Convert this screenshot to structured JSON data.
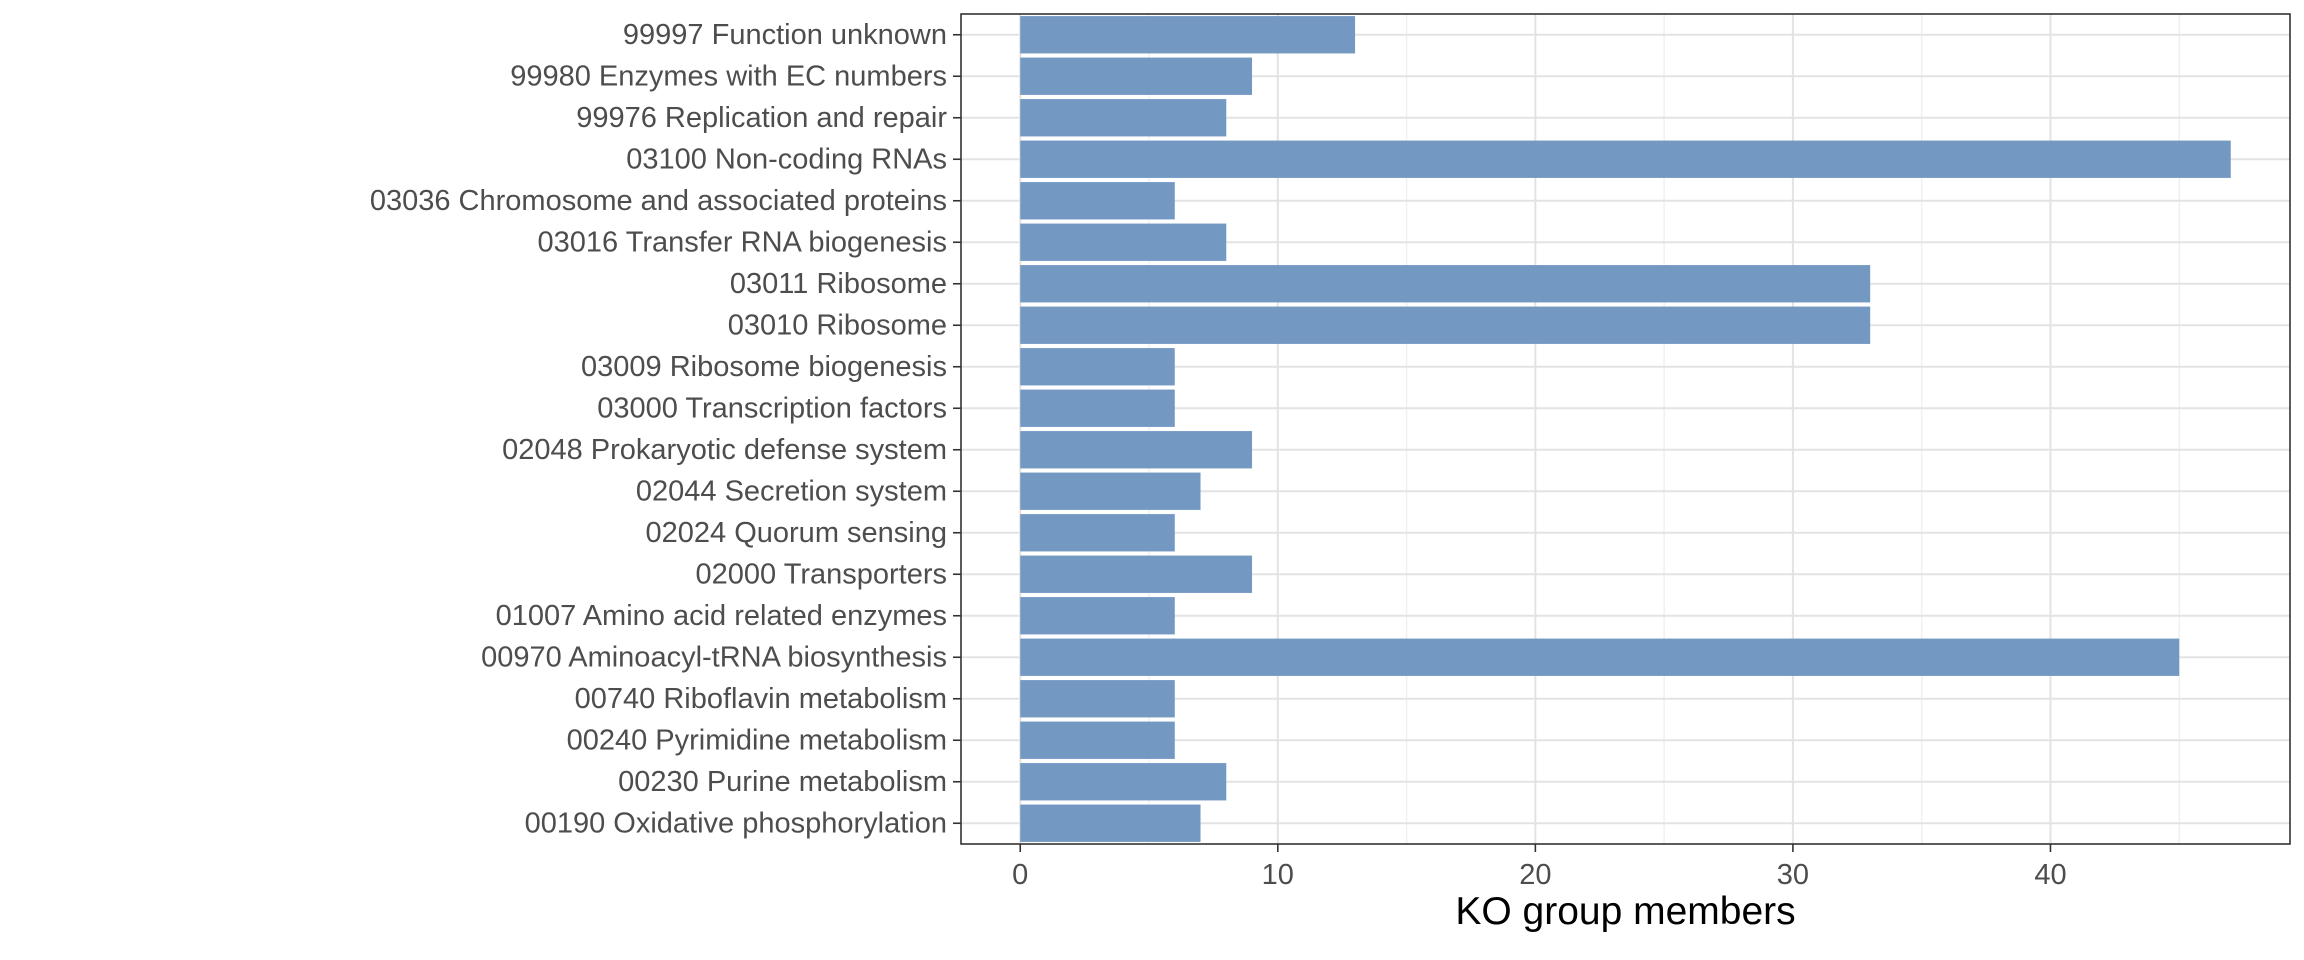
{
  "colors": {
    "bar": "#7399c3",
    "panel_border": "#333333",
    "grid_major": "#e3e3e3",
    "grid_minor": "#f0f0f0",
    "text": "#4d4d4d"
  },
  "chart_data": {
    "type": "bar",
    "orientation": "horizontal",
    "title": "",
    "xlabel": "KO group members",
    "ylabel": "",
    "xlim": [
      -2.3,
      49.3
    ],
    "x_ticks": [
      0,
      10,
      20,
      30,
      40
    ],
    "x_tick_labels": [
      "0",
      "10",
      "20",
      "30",
      "40"
    ],
    "grid": true,
    "categories": [
      "99997 Function unknown",
      "99980 Enzymes with EC numbers",
      "99976 Replication and repair",
      "03100 Non-coding RNAs",
      "03036 Chromosome and associated proteins",
      "03016 Transfer RNA biogenesis",
      "03011 Ribosome",
      "03010 Ribosome",
      "03009 Ribosome biogenesis",
      "03000 Transcription factors",
      "02048 Prokaryotic defense system",
      "02044 Secretion system",
      "02024 Quorum sensing",
      "02000 Transporters",
      "01007 Amino acid related enzymes",
      "00970 Aminoacyl-tRNA biosynthesis",
      "00740 Riboflavin metabolism",
      "00240 Pyrimidine metabolism",
      "00230 Purine metabolism",
      "00190 Oxidative phosphorylation"
    ],
    "values": [
      13,
      9,
      8,
      47,
      6,
      8,
      33,
      33,
      6,
      6,
      9,
      7,
      6,
      9,
      6,
      45,
      6,
      6,
      8,
      7
    ]
  }
}
